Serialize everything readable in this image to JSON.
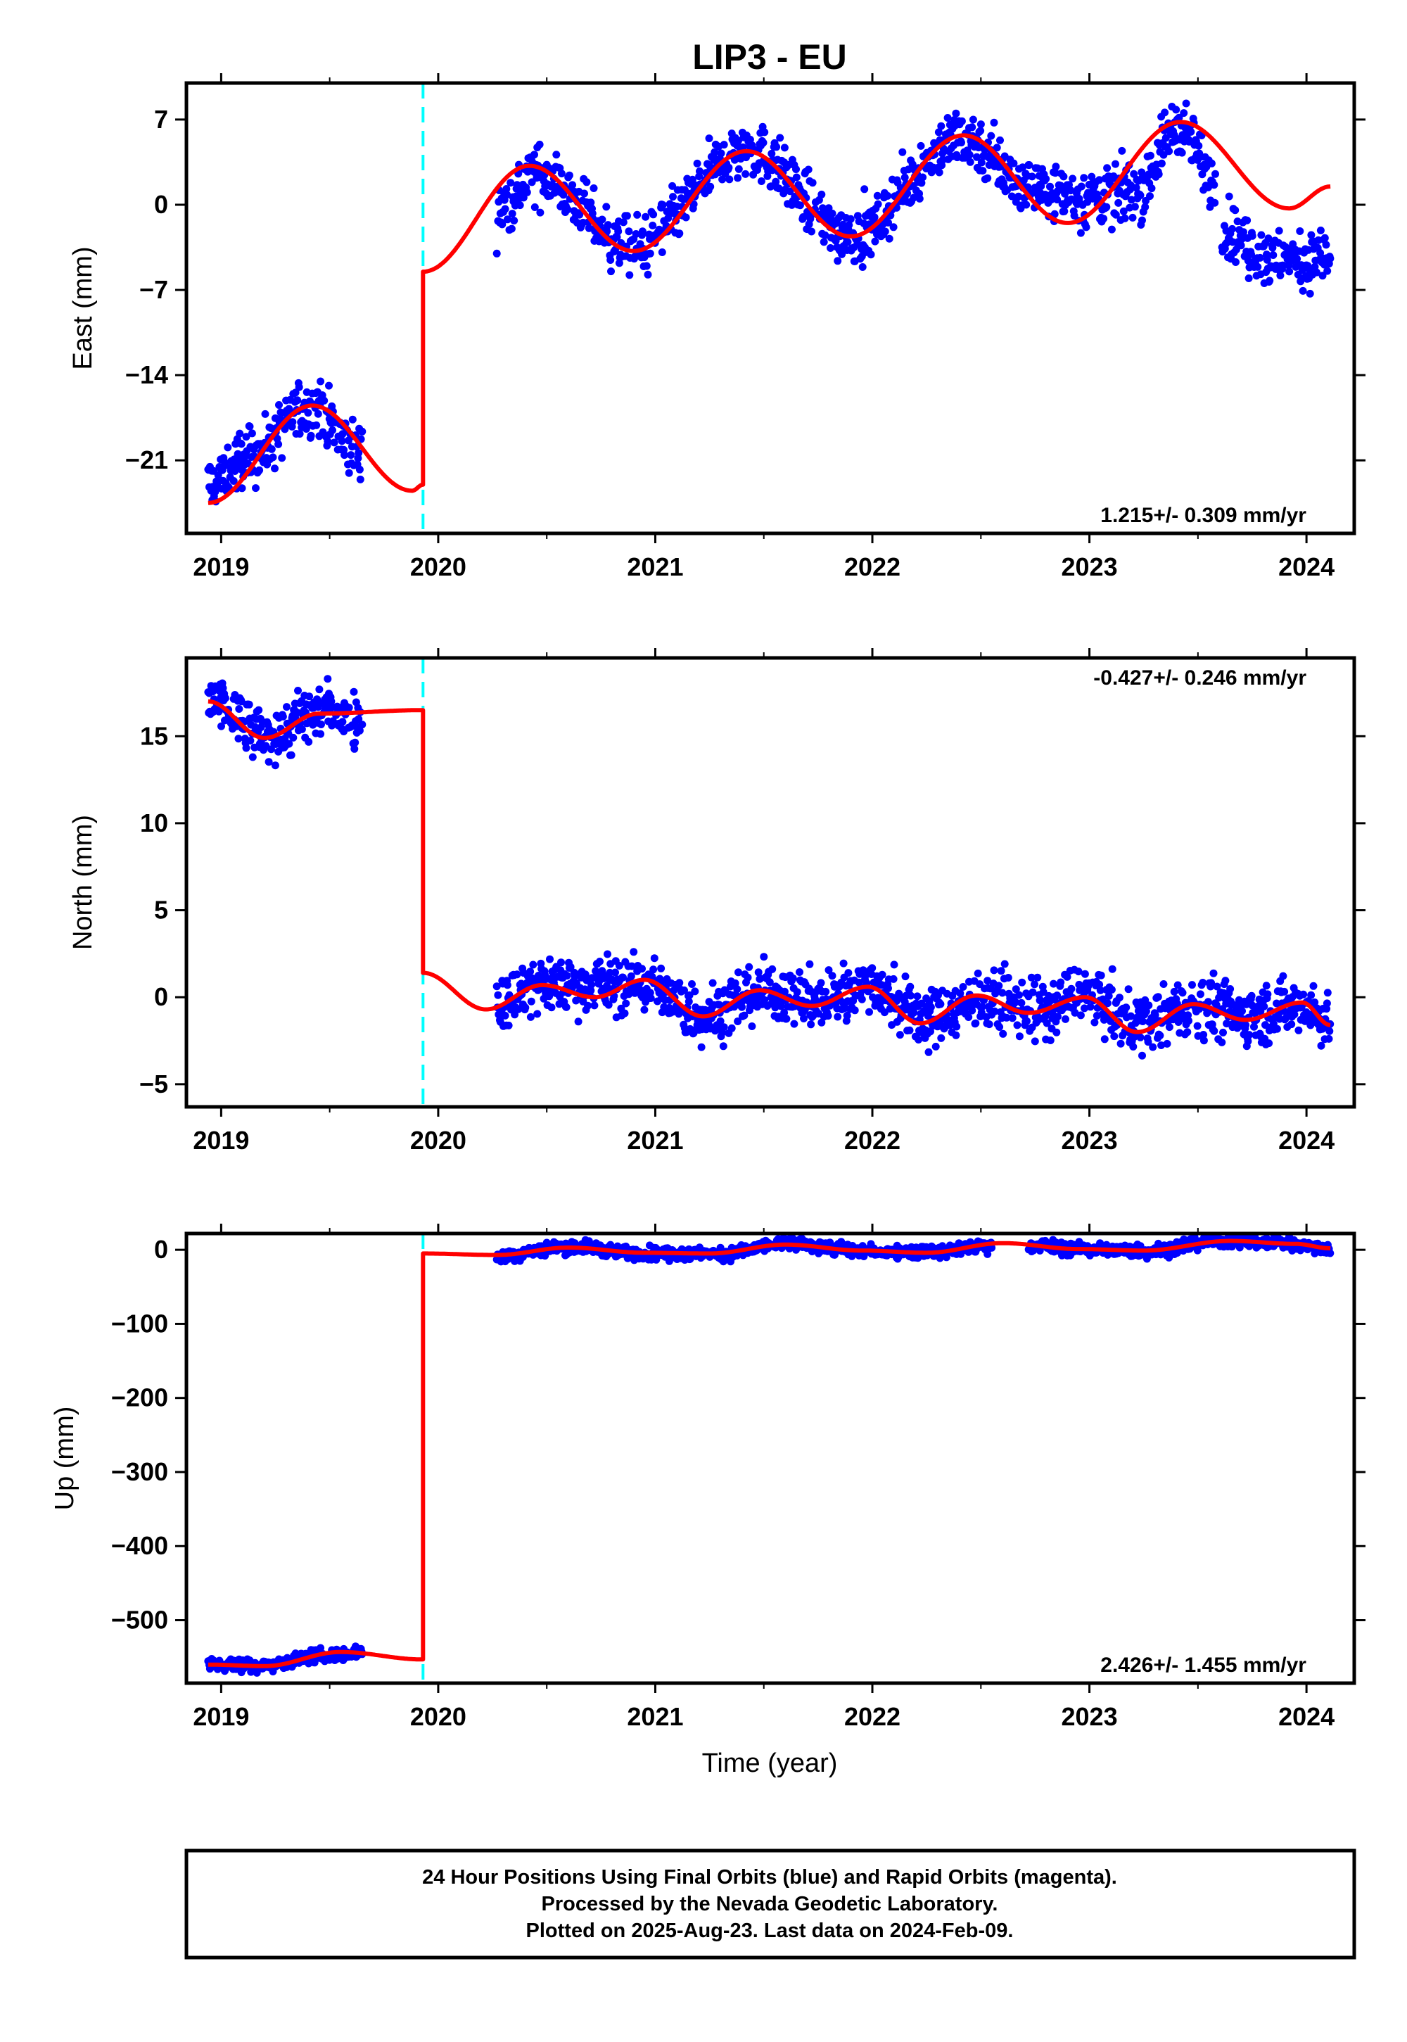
{
  "figure": {
    "title": "LIP3 - EU",
    "xlabel": "Time (year)",
    "caption_lines": [
      "24 Hour Positions Using Final Orbits (blue) and Rapid Orbits (magenta).",
      "Processed by the Nevada Geodetic Laboratory.",
      "Plotted on 2025-Aug-23. Last data on 2024-Feb-09."
    ]
  },
  "colors": {
    "data_points": "#0000ff",
    "model_fit": "#ff0000",
    "offset_line": "#00ffff",
    "frame": "#000000"
  },
  "chart_data": [
    {
      "type": "scatter",
      "component": "East",
      "ylabel": "East (mm)",
      "rate_text": "1.215+/- 0.309 mm/yr",
      "rate_position": "bottom-right",
      "xlim": [
        2018.84,
        2024.22
      ],
      "ylim": [
        -27,
        10
      ],
      "x_ticks": [
        2019,
        2020,
        2021,
        2022,
        2023,
        2024
      ],
      "x_tick_labels": [
        "2019",
        "2020",
        "2021",
        "2022",
        "2023",
        "2024"
      ],
      "y_ticks": [
        7,
        0,
        -7,
        -14,
        -21
      ],
      "y_tick_labels": [
        "7",
        "0",
        "−7",
        "−14",
        "−21"
      ],
      "offset_epoch": 2019.93,
      "data_segments": [
        {
          "x_start": 2018.94,
          "x_end": 2019.65,
          "y_anchors": [
            [
              2018.94,
              -23.0
            ],
            [
              2019.15,
              -20.5
            ],
            [
              2019.4,
              -16.5
            ],
            [
              2019.65,
              -20.5
            ]
          ]
        },
        {
          "x_start": 2020.27,
          "x_end": 2023.58,
          "y_anchors": [
            [
              2020.27,
              -0.5
            ],
            [
              2020.45,
              2.5
            ],
            [
              2020.9,
              -3.5
            ],
            [
              2021.42,
              4.5
            ],
            [
              2021.9,
              -2.5
            ],
            [
              2022.42,
              5.5
            ],
            [
              2022.72,
              1.5
            ],
            [
              2022.95,
              0.5
            ],
            [
              2023.2,
              1.0
            ],
            [
              2023.42,
              6.5
            ],
            [
              2023.58,
              2.0
            ]
          ]
        },
        {
          "x_start": 2023.6,
          "x_end": 2024.11,
          "y_anchors": [
            [
              2023.6,
              -2.0
            ],
            [
              2023.85,
              -4.5
            ],
            [
              2024.11,
              -4.5
            ]
          ]
        }
      ],
      "model_fit": {
        "pre_offset": {
          "x_start": 2018.94,
          "x_end": 2019.93,
          "y_start": -24.5,
          "peak_x": 2019.42,
          "peak_y": -16.5,
          "y_end": -23.0
        },
        "jump": [
          -23.0,
          -5.5
        ],
        "post_offset_start": [
          2019.93,
          -5.5
        ],
        "post_offset_extrema": [
          [
            2020.42,
            3.2
          ],
          [
            2020.9,
            -3.8
          ],
          [
            2021.42,
            4.4
          ],
          [
            2021.9,
            -2.6
          ],
          [
            2022.42,
            5.7
          ],
          [
            2022.9,
            -1.5
          ],
          [
            2023.42,
            6.8
          ],
          [
            2023.92,
            -0.3
          ]
        ],
        "post_offset_end": [
          2024.11,
          1.5
        ]
      }
    },
    {
      "type": "scatter",
      "component": "North",
      "ylabel": "North (mm)",
      "rate_text": "-0.427+/- 0.246 mm/yr",
      "rate_position": "top-right",
      "xlim": [
        2018.84,
        2024.22
      ],
      "ylim": [
        -6.3,
        19.5
      ],
      "x_ticks": [
        2019,
        2020,
        2021,
        2022,
        2023,
        2024
      ],
      "x_tick_labels": [
        "2019",
        "2020",
        "2021",
        "2022",
        "2023",
        "2024"
      ],
      "y_ticks": [
        15,
        10,
        5,
        0,
        -5
      ],
      "y_tick_labels": [
        "15",
        "10",
        "5",
        "0",
        "−5"
      ],
      "offset_epoch": 2019.93,
      "data_segments": [
        {
          "x_start": 2018.94,
          "x_end": 2019.65,
          "y_anchors": [
            [
              2018.94,
              17.0
            ],
            [
              2019.2,
              15.0
            ],
            [
              2019.5,
              16.5
            ],
            [
              2019.65,
              16.0
            ]
          ]
        },
        {
          "x_start": 2020.27,
          "x_end": 2024.11,
          "y_anchors": [
            [
              2020.27,
              -0.3
            ],
            [
              2020.5,
              0.8
            ],
            [
              2020.95,
              0.7
            ],
            [
              2021.2,
              -1.0
            ],
            [
              2021.5,
              0.3
            ],
            [
              2021.75,
              -0.2
            ],
            [
              2021.98,
              0.7
            ],
            [
              2022.25,
              -1.2
            ],
            [
              2022.5,
              -0.2
            ],
            [
              2022.8,
              -0.8
            ],
            [
              2022.95,
              0.2
            ],
            [
              2023.22,
              -1.5
            ],
            [
              2023.5,
              -0.5
            ],
            [
              2023.75,
              -1.0
            ],
            [
              2023.98,
              -0.5
            ],
            [
              2024.11,
              -1.3
            ]
          ]
        }
      ],
      "model_fit": {
        "pre_offset": {
          "x_start": 2018.94,
          "x_end": 2019.93,
          "y_start": 17.0,
          "trough_x": 2019.2,
          "trough_y": 14.9,
          "peak_x": 2019.45,
          "peak_y": 16.3,
          "y_end": 16.5
        },
        "jump": [
          16.5,
          1.4
        ],
        "post_offset_start": [
          2019.93,
          1.4
        ],
        "post_offset_extrema": [
          [
            2020.22,
            -0.7
          ],
          [
            2020.48,
            0.7
          ],
          [
            2020.72,
            0.0
          ],
          [
            2020.95,
            1.0
          ],
          [
            2021.22,
            -1.1
          ],
          [
            2021.48,
            0.4
          ],
          [
            2021.72,
            -0.5
          ],
          [
            2021.98,
            0.6
          ],
          [
            2022.22,
            -1.5
          ],
          [
            2022.48,
            0.1
          ],
          [
            2022.72,
            -0.9
          ],
          [
            2022.98,
            0.0
          ],
          [
            2023.22,
            -2.0
          ],
          [
            2023.48,
            -0.4
          ],
          [
            2023.72,
            -1.3
          ],
          [
            2023.98,
            -0.3
          ]
        ],
        "post_offset_end": [
          2024.11,
          -1.6
        ]
      }
    },
    {
      "type": "scatter",
      "component": "Up",
      "ylabel": "Up (mm)",
      "rate_text": "2.426+/- 1.455 mm/yr",
      "rate_position": "bottom-right",
      "xlim": [
        2018.84,
        2024.22
      ],
      "ylim": [
        -585,
        22
      ],
      "x_ticks": [
        2019,
        2020,
        2021,
        2022,
        2023,
        2024
      ],
      "x_tick_labels": [
        "2019",
        "2020",
        "2021",
        "2022",
        "2023",
        "2024"
      ],
      "y_ticks": [
        0,
        -100,
        -200,
        -300,
        -400,
        -500
      ],
      "y_tick_labels": [
        "0",
        "−100",
        "−200",
        "−300",
        "−400",
        "−500"
      ],
      "offset_epoch": 2019.93,
      "data_segments": [
        {
          "x_start": 2018.94,
          "x_end": 2019.65,
          "y_anchors": [
            [
              2018.94,
              -560
            ],
            [
              2019.2,
              -561
            ],
            [
              2019.45,
              -548
            ],
            [
              2019.65,
              -543
            ]
          ]
        },
        {
          "x_start": 2020.27,
          "x_end": 2022.55,
          "y_anchors": [
            [
              2020.27,
              -8
            ],
            [
              2020.6,
              4
            ],
            [
              2020.95,
              -5
            ],
            [
              2021.3,
              -6
            ],
            [
              2021.6,
              8
            ],
            [
              2022.0,
              -2
            ],
            [
              2022.25,
              -3
            ],
            [
              2022.55,
              6
            ]
          ]
        },
        {
          "x_start": 2022.72,
          "x_end": 2024.11,
          "y_anchors": [
            [
              2022.72,
              6
            ],
            [
              2023.0,
              0
            ],
            [
              2023.25,
              -2
            ],
            [
              2023.6,
              12
            ],
            [
              2023.85,
              10
            ],
            [
              2024.11,
              2
            ]
          ]
        }
      ],
      "model_fit": {
        "pre_offset": {
          "x_start": 2018.94,
          "x_end": 2019.93,
          "y_start": -560,
          "trough_x": 2019.2,
          "trough_y": -562,
          "peak_x": 2019.55,
          "peak_y": -543,
          "y_end": -553
        },
        "jump": [
          -553,
          -5
        ],
        "post_offset_start": [
          2019.93,
          -5
        ],
        "post_offset_extrema": [
          [
            2020.27,
            -7
          ],
          [
            2020.6,
            3
          ],
          [
            2020.95,
            -4
          ],
          [
            2021.25,
            -5
          ],
          [
            2021.6,
            7
          ],
          [
            2021.95,
            -1
          ],
          [
            2022.25,
            -4
          ],
          [
            2022.6,
            9
          ],
          [
            2022.95,
            1
          ],
          [
            2023.25,
            -1
          ],
          [
            2023.65,
            12
          ],
          [
            2023.95,
            8
          ]
        ],
        "post_offset_end": [
          2024.11,
          2
        ]
      }
    }
  ]
}
